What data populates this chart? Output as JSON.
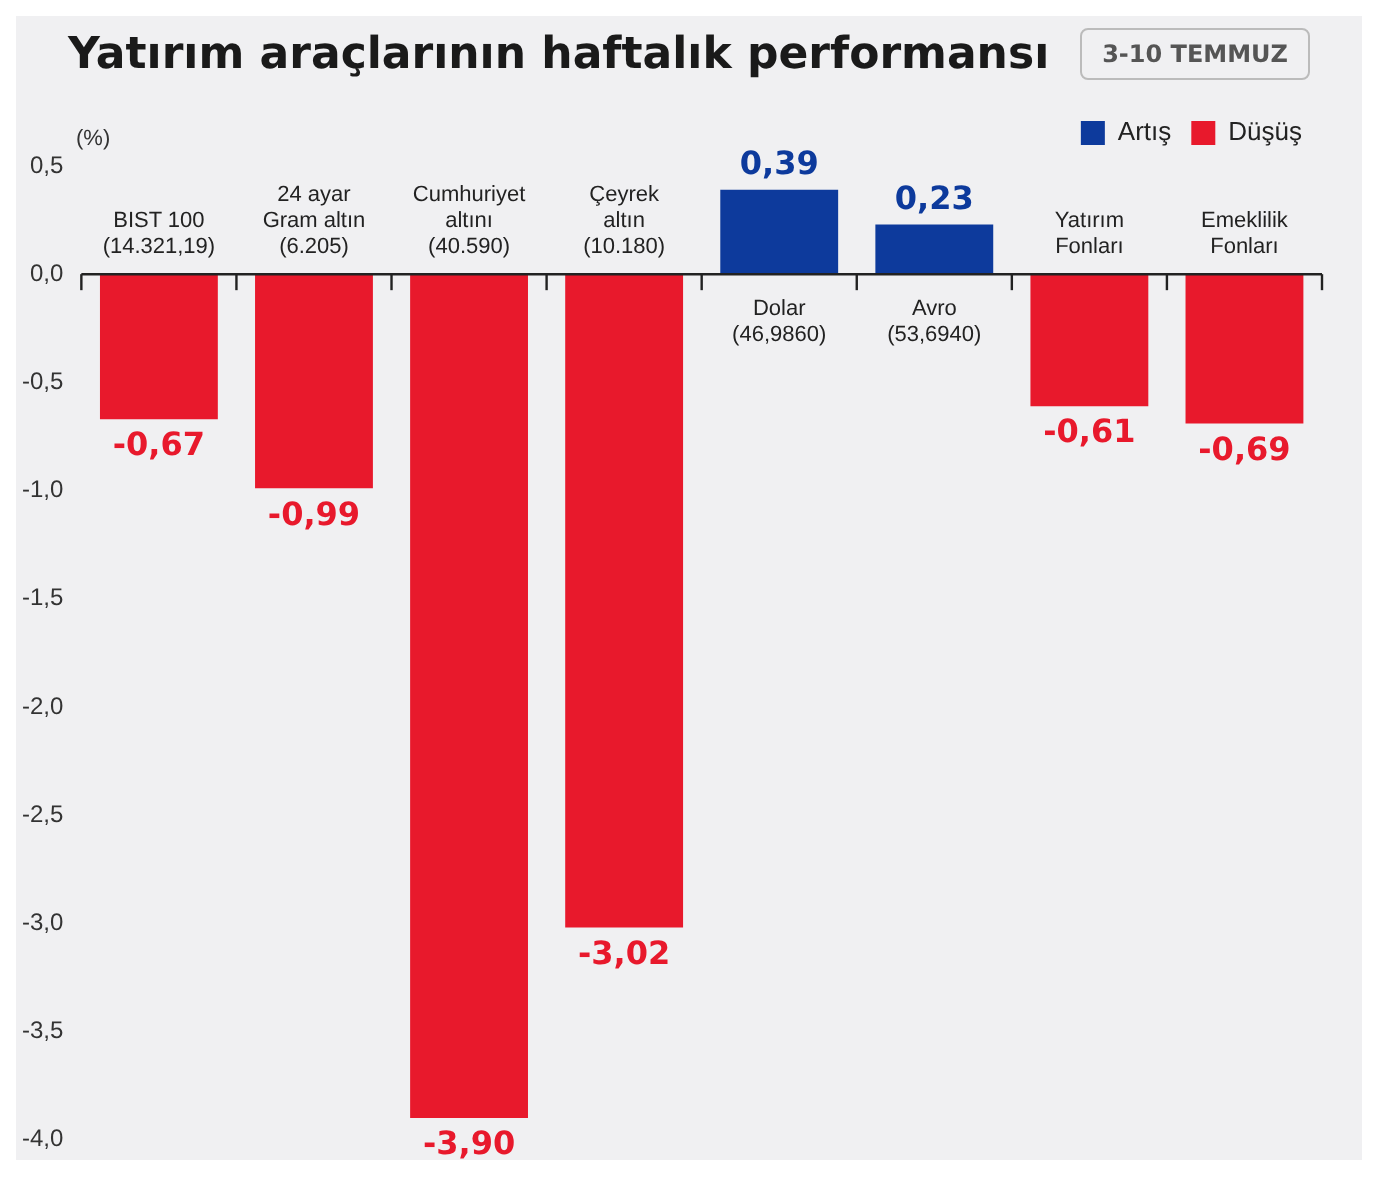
{
  "chart_data": {
    "type": "bar",
    "title": "Yatırım araçlarının haftalık performansı",
    "subtitle": "3-10 TEMMUZ",
    "ylabel": "(%)",
    "categories": [
      "BIST 100\n(14.321,19)",
      "24 ayar\nGram altın\n(6.205)",
      "Cumhuriyet\naltını\n(40.590)",
      "Çeyrek\naltın\n(10.180)",
      "Dolar\n(46,9860)",
      "Avro\n(53,6940)",
      "Yatırım\nFonları",
      "Emeklilik\nFonları"
    ],
    "stacked": true,
    "series": [
      {
        "name": "Artış",
        "color": "#0d3a9c",
        "values": [
          null,
          null,
          null,
          null,
          0.39,
          0.23,
          null,
          null
        ],
        "value_labels": [
          null,
          null,
          null,
          null,
          "0,39",
          "0,23",
          null,
          null
        ]
      },
      {
        "name": "Düşüş",
        "color": "#e8192c",
        "values": [
          -0.67,
          -0.99,
          -3.9,
          -3.02,
          null,
          null,
          -0.61,
          -0.69
        ],
        "value_labels": [
          "-0,67",
          "-0,99",
          "-3,90",
          "-3,02",
          null,
          null,
          "-0,61",
          "-0,69"
        ]
      }
    ],
    "ylim": [
      -4,
      0.5
    ],
    "yticks": [
      {
        "value": 0.5,
        "label": "0,5"
      },
      {
        "value": 0,
        "label": "0,0"
      },
      {
        "value": -0.5,
        "label": "-0,5"
      },
      {
        "value": -1,
        "label": "-1,0"
      },
      {
        "value": -1.5,
        "label": "-1,5"
      },
      {
        "value": -2,
        "label": "-2,0"
      },
      {
        "value": -2.5,
        "label": "-2,5"
      },
      {
        "value": -3,
        "label": "-3,0"
      },
      {
        "value": -3.5,
        "label": "-3,5"
      },
      {
        "value": -4,
        "label": "-4,0"
      }
    ],
    "grid": false,
    "legend": "top right"
  }
}
